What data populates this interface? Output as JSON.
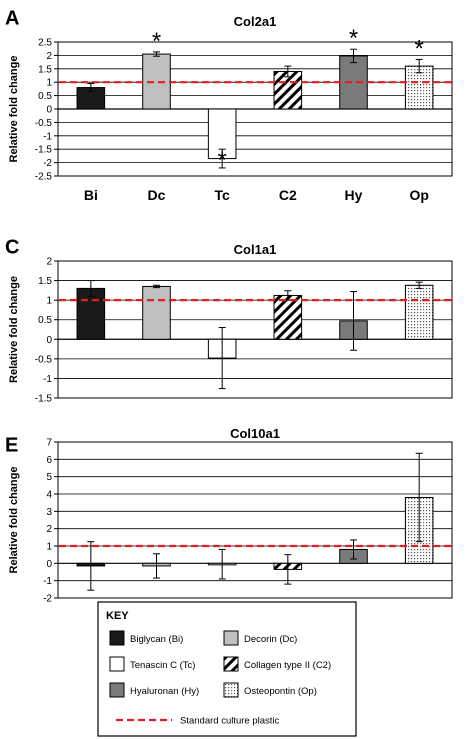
{
  "panels": [
    {
      "letter": "A",
      "title": "Col2a1",
      "ylabel": "Relative fold change",
      "yticks": [
        "2.5",
        "2",
        "1.5",
        "1",
        "0.5",
        "0",
        "-0.5",
        "-1",
        "-1.5",
        "-2",
        "-2.5"
      ],
      "bars": [
        {
          "key": "Bi",
          "value": 0.8,
          "err": 0.15,
          "star": false
        },
        {
          "key": "Dc",
          "value": 2.05,
          "err": 0.08,
          "star": true
        },
        {
          "key": "Tc",
          "value": -1.85,
          "err": 0.35,
          "star": true
        },
        {
          "key": "C2",
          "value": 1.4,
          "err": 0.2,
          "star": false
        },
        {
          "key": "Hy",
          "value": 1.98,
          "err": 0.25,
          "star": true
        },
        {
          "key": "Op",
          "value": 1.6,
          "err": 0.25,
          "star": true
        }
      ],
      "xlabels": [
        "Bi",
        "Dc",
        "Tc",
        "C2",
        "Hy",
        "Op"
      ],
      "star_label": "*"
    },
    {
      "letter": "C",
      "title": "Col1a1",
      "ylabel": "Relative fold change",
      "yticks": [
        "2",
        "1.5",
        "1",
        "0.5",
        "0",
        "-0.5",
        "-1",
        "-1.5"
      ],
      "bars": [
        {
          "key": "Bi",
          "value": 1.3,
          "err": 0.2
        },
        {
          "key": "Dc",
          "value": 1.35,
          "err": 0.03
        },
        {
          "key": "Tc",
          "value": -0.48,
          "err": 0.78
        },
        {
          "key": "C2",
          "value": 1.12,
          "err": 0.12
        },
        {
          "key": "Hy",
          "value": 0.47,
          "err": 0.75
        },
        {
          "key": "Op",
          "value": 1.38,
          "err": 0.08
        }
      ]
    },
    {
      "letter": "E",
      "title": "Col10a1",
      "ylabel": "Relative fold change",
      "yticks": [
        "7",
        "6",
        "5",
        "4",
        "3",
        "2",
        "1",
        "0",
        "-1",
        "-2"
      ],
      "bars": [
        {
          "key": "Bi",
          "value": -0.15,
          "err": 1.4
        },
        {
          "key": "Dc",
          "value": -0.15,
          "err": 0.7
        },
        {
          "key": "Tc",
          "value": -0.05,
          "err": 0.85
        },
        {
          "key": "C2",
          "value": -0.35,
          "err": 0.85
        },
        {
          "key": "Hy",
          "value": 0.8,
          "err": 0.55
        },
        {
          "key": "Op",
          "value": 3.8,
          "err": 2.55
        }
      ]
    }
  ],
  "key": {
    "title": "KEY",
    "entries": [
      {
        "code": "Bi",
        "label": "Biglycan (Bi)"
      },
      {
        "code": "Dc",
        "label": "Decorin (Dc)"
      },
      {
        "code": "Tc",
        "label": "Tenascin C (Tc)"
      },
      {
        "code": "C2",
        "label": "Collagen type II (C2)"
      },
      {
        "code": "Hy",
        "label": "Hyaluronan (Hy)"
      },
      {
        "code": "Op",
        "label": "Osteopontin (Op)"
      }
    ],
    "reference_label": "Standard culture plastic"
  },
  "colors": {
    "Bi": "#1a1a1a",
    "Dc": "#c0c0c0",
    "Tc": "#ffffff",
    "Hy": "#7a7a7a",
    "reference": "#e02020",
    "grid": "#000000"
  },
  "reference_value": 1,
  "chart_data": [
    {
      "type": "bar",
      "title": "Col2a1",
      "ylabel": "Relative fold change",
      "categories": [
        "Bi",
        "Dc",
        "Tc",
        "C2",
        "Hy",
        "Op"
      ],
      "values": [
        0.8,
        2.05,
        -1.85,
        1.4,
        1.98,
        1.6
      ],
      "errors": [
        0.15,
        0.08,
        0.35,
        0.2,
        0.25,
        0.25
      ],
      "significant": [
        false,
        true,
        true,
        false,
        true,
        true
      ],
      "ylim": [
        -2.5,
        2.5
      ],
      "reference_line": 1,
      "grid": true
    },
    {
      "type": "bar",
      "title": "Col1a1",
      "ylabel": "Relative fold change",
      "categories": [
        "Bi",
        "Dc",
        "Tc",
        "C2",
        "Hy",
        "Op"
      ],
      "values": [
        1.3,
        1.35,
        -0.48,
        1.12,
        0.47,
        1.38
      ],
      "errors": [
        0.2,
        0.03,
        0.78,
        0.12,
        0.75,
        0.08
      ],
      "ylim": [
        -1.5,
        2
      ],
      "reference_line": 1,
      "grid": true
    },
    {
      "type": "bar",
      "title": "Col10a1",
      "ylabel": "Relative fold change",
      "categories": [
        "Bi",
        "Dc",
        "Tc",
        "C2",
        "Hy",
        "Op"
      ],
      "values": [
        -0.15,
        -0.15,
        -0.05,
        -0.35,
        0.8,
        3.8
      ],
      "errors": [
        1.4,
        0.7,
        0.85,
        0.85,
        0.55,
        2.55
      ],
      "ylim": [
        -2,
        7
      ],
      "reference_line": 1,
      "grid": true
    }
  ]
}
